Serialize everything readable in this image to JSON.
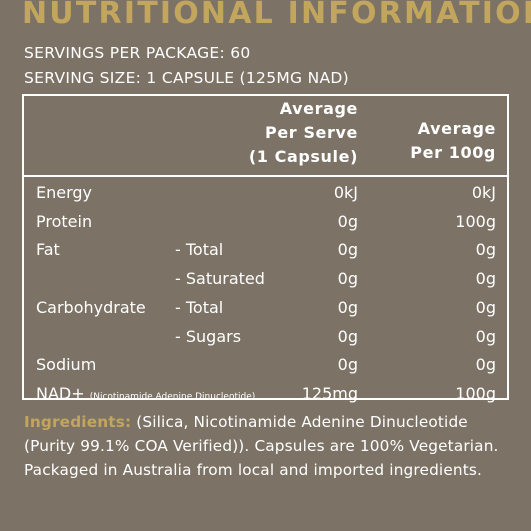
{
  "title": "NUTRITIONAL INFORMATION",
  "servings": "SERVINGS PER PACKAGE: 60",
  "serving_size": "SERVING SIZE: 1 CAPSULE (125MG NAD)",
  "header": {
    "col1": [
      "Average",
      "Per Serve",
      "(1 Capsule)"
    ],
    "col2": [
      "Average",
      "Per 100g"
    ]
  },
  "rows": [
    {
      "name": "Energy",
      "sub": "",
      "per_serve": "0kJ",
      "per_100g": "0kJ"
    },
    {
      "name": "Protein",
      "sub": "",
      "per_serve": "0g",
      "per_100g": "100g"
    },
    {
      "name": "Fat",
      "sub": "- Total",
      "per_serve": "0g",
      "per_100g": "0g"
    },
    {
      "name": "",
      "sub": "- Saturated",
      "per_serve": "0g",
      "per_100g": "0g"
    },
    {
      "name": "Carbohydrate",
      "sub": "- Total",
      "per_serve": "0g",
      "per_100g": "0g"
    },
    {
      "name": "",
      "sub": "- Sugars",
      "per_serve": "0g",
      "per_100g": "0g"
    },
    {
      "name": "Sodium",
      "sub": "",
      "per_serve": "0g",
      "per_100g": "0g"
    },
    {
      "name": "NAD+",
      "name_small": "(Nicotinamide Adenine Dinucleotide)",
      "sub": "",
      "per_serve": "125mg",
      "per_100g": "100g"
    }
  ],
  "ingredients": {
    "label": "Ingredients:",
    "text": "(Silica, Nicotinamide Adenine Dinucleotide (Purity 99.1% COA Verified)). Capsules are 100% Vegetarian. Packaged in Australia from local and imported ingredients."
  },
  "colors": {
    "background": "#7c7265",
    "accent": "#c2a65d",
    "text": "#ffffff"
  }
}
